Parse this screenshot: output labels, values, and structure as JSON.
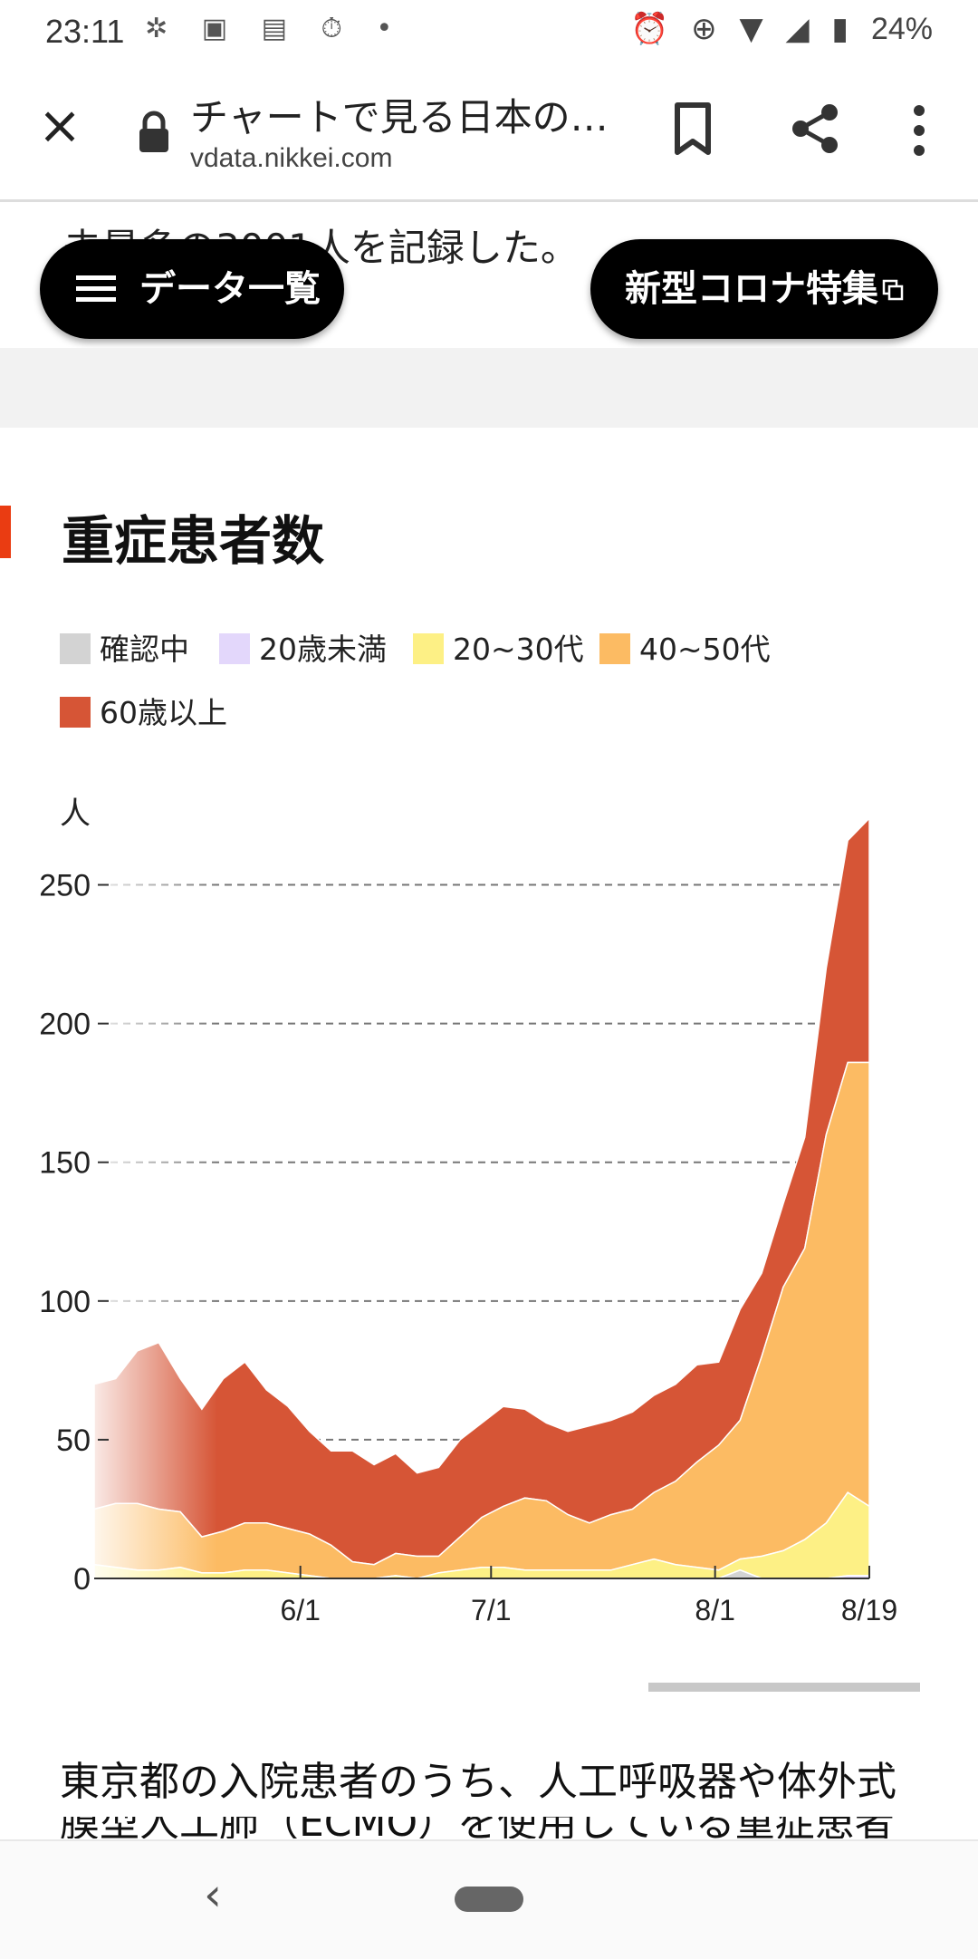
{
  "status_bar": {
    "time": "23:11",
    "left_icons": [
      "notification-icon",
      "image-icon",
      "line-manga-icon",
      "timer-icon",
      "dot-icon"
    ],
    "right_icons": [
      "alarm-icon",
      "data-saver-icon",
      "wifi-icon",
      "signal-icon",
      "battery-icon"
    ],
    "battery": "24%"
  },
  "toolbar": {
    "title": "チャートで見る日本の…",
    "url": "vdata.nikkei.com"
  },
  "page": {
    "partial_text": "去最多の3001人を記録した。",
    "data_list_button": "データ一覧",
    "feature_button": "新型コロナ特集",
    "section_title": "重症患者数",
    "body_text": "東京都の入院患者のうち、人工呼吸器や体外式",
    "body_text_cut": "膜型人工肺（ECMO）を使用している重症患者"
  },
  "colors": {
    "accent": "#ea3c12",
    "unknown": "#d3d3d3",
    "under20": "#e3d7fb",
    "age20_30": "#fdf085",
    "age40_50": "#fcbb63",
    "over60": "#d65536"
  },
  "chart_data": {
    "type": "area",
    "stacked": true,
    "ylabel": "人",
    "ylim": [
      0,
      275
    ],
    "yticks": [
      0,
      50,
      100,
      150,
      200,
      250
    ],
    "xticks": [
      "6/1",
      "7/1",
      "8/1",
      "8/19"
    ],
    "grid": "horizontal-dashed",
    "legend_position": "top",
    "x": [
      0,
      3,
      6,
      9,
      12,
      15,
      18,
      21,
      24,
      27,
      30,
      33,
      36,
      39,
      42,
      45,
      48,
      51,
      54,
      57,
      60,
      63,
      66,
      69,
      72,
      75,
      78,
      81,
      84,
      87,
      90,
      93,
      96,
      99,
      102,
      105,
      108
    ],
    "series": [
      {
        "name": "確認中",
        "values": [
          0,
          0,
          0,
          0,
          0,
          0,
          0,
          0,
          0,
          0,
          0,
          0,
          0,
          0,
          0,
          0,
          0,
          0,
          0,
          0,
          0,
          0,
          0,
          0,
          0,
          0,
          0,
          0,
          0,
          0,
          3,
          0,
          0,
          0,
          0,
          0,
          0
        ]
      },
      {
        "name": "20歳未満",
        "values": [
          0,
          0,
          0,
          0,
          0,
          0,
          0,
          0,
          0,
          0,
          0,
          0,
          0,
          0,
          0,
          0,
          0,
          0,
          0,
          0,
          0,
          0,
          0,
          0,
          0,
          0,
          0,
          0,
          0,
          0,
          0,
          0,
          0,
          0,
          0,
          1,
          1
        ]
      },
      {
        "name": "20~30代",
        "values": [
          5,
          4,
          3,
          3,
          4,
          2,
          2,
          3,
          3,
          2,
          1,
          0,
          0,
          0,
          1,
          0,
          2,
          3,
          4,
          4,
          3,
          3,
          3,
          3,
          3,
          5,
          7,
          5,
          4,
          3,
          4,
          8,
          10,
          14,
          20,
          30,
          25
        ]
      },
      {
        "name": "40~50代",
        "values": [
          20,
          23,
          24,
          22,
          20,
          13,
          15,
          17,
          17,
          16,
          15,
          12,
          6,
          5,
          8,
          8,
          6,
          12,
          18,
          22,
          26,
          25,
          20,
          17,
          20,
          20,
          24,
          30,
          38,
          45,
          50,
          72,
          95,
          105,
          140,
          155,
          160
        ]
      },
      {
        "name": "60歳以上",
        "values": [
          45,
          45,
          55,
          60,
          48,
          46,
          55,
          58,
          48,
          44,
          37,
          34,
          40,
          36,
          36,
          30,
          32,
          35,
          34,
          36,
          32,
          28,
          30,
          35,
          34,
          35,
          35,
          35,
          35,
          30,
          40,
          30,
          30,
          40,
          60,
          80,
          88
        ]
      }
    ]
  }
}
